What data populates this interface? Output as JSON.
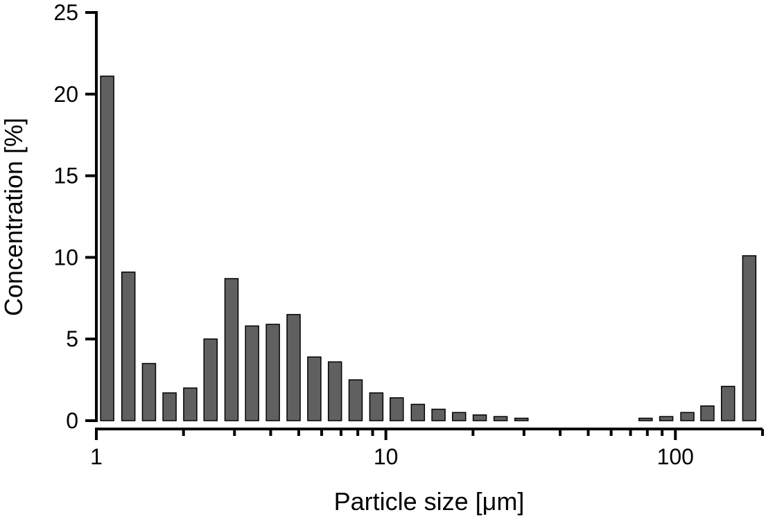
{
  "chart_data": {
    "type": "bar",
    "xlabel": "Particle size [μm]",
    "ylabel": "Concentration [%]",
    "x": [
      1.09,
      1.29,
      1.52,
      1.79,
      2.11,
      2.48,
      2.93,
      3.45,
      4.07,
      4.8,
      5.66,
      6.67,
      7.86,
      9.27,
      10.9,
      12.9,
      15.2,
      17.9,
      21.1,
      24.9,
      29.4,
      34.6,
      40.8,
      48.1,
      56.7,
      66.9,
      78.9,
      93.0,
      110,
      129,
      152,
      180
    ],
    "values": [
      21.1,
      9.1,
      3.5,
      1.7,
      2.0,
      5.0,
      8.7,
      5.8,
      5.9,
      6.5,
      3.9,
      3.6,
      2.5,
      1.7,
      1.4,
      1.0,
      0.7,
      0.5,
      0.35,
      0.25,
      0.15,
      0,
      0,
      0,
      0,
      0,
      0.15,
      0.25,
      0.5,
      0.9,
      2.1,
      10.1
    ],
    "color": "#606060",
    "xscale": "log",
    "xlim": [
      1,
      200
    ],
    "xticks": [
      1,
      10,
      100
    ],
    "xminor": [
      2,
      3,
      4,
      5,
      6,
      7,
      8,
      9,
      20,
      30,
      40,
      50,
      60,
      70,
      80,
      90,
      200
    ],
    "ylim": [
      0,
      25
    ],
    "yticks": [
      0,
      5,
      10,
      15,
      20,
      25
    ],
    "grid": false
  }
}
